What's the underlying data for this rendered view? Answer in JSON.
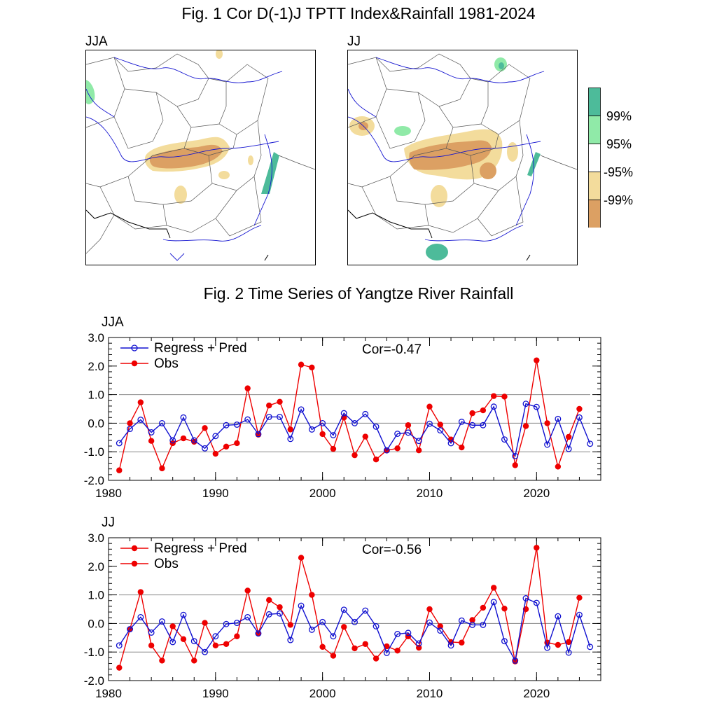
{
  "fig1": {
    "title": "Fig. 1 Cor D(-1)J TPTT Index&Rainfall 1981-2024",
    "maps": [
      {
        "label": "JJA"
      },
      {
        "label": "JJ"
      }
    ],
    "colorbar": {
      "labels": [
        "99%",
        "95%",
        "-95%",
        "-99%"
      ],
      "colors": [
        "#4dbb9a",
        "#90eaa8",
        "#ffffff",
        "#f3dc9c",
        "#dca063"
      ]
    }
  },
  "fig2": {
    "title": "Fig. 2 Time Series of Yangtze River Rainfall",
    "colors": {
      "blue": "#1010d0",
      "red": "#ee0000"
    }
  },
  "chart_data": [
    {
      "type": "line",
      "label": "JJA",
      "correlation": "Cor=-0.47",
      "x": [
        1981,
        1982,
        1983,
        1984,
        1985,
        1986,
        1987,
        1988,
        1989,
        1990,
        1991,
        1992,
        1993,
        1994,
        1995,
        1996,
        1997,
        1998,
        1999,
        2000,
        2001,
        2002,
        2003,
        2004,
        2005,
        2006,
        2007,
        2008,
        2009,
        2010,
        2011,
        2012,
        2013,
        2014,
        2015,
        2016,
        2017,
        2018,
        2019,
        2020,
        2021,
        2022,
        2023,
        2024,
        2025
      ],
      "xticks": [
        1980,
        1990,
        2000,
        2010,
        2020
      ],
      "yticks": [
        "-2.0",
        "-1.0",
        "0.0",
        "1.0",
        "2.0",
        "3.0"
      ],
      "ylim": [
        -2,
        3
      ],
      "xlim": [
        1980,
        2026
      ],
      "series": [
        {
          "name": "Regress + Pred",
          "color": "#1010d0",
          "marker": "open",
          "values": [
            -0.7,
            -0.2,
            0.12,
            -0.32,
            0.0,
            -0.6,
            0.2,
            -0.6,
            -0.88,
            -0.45,
            -0.07,
            -0.05,
            0.13,
            -0.38,
            0.22,
            0.22,
            -0.55,
            0.48,
            -0.22,
            0.0,
            -0.42,
            0.35,
            0.0,
            0.32,
            -0.12,
            -0.95,
            -0.37,
            -0.33,
            -0.62,
            -0.02,
            -0.25,
            -0.7,
            0.05,
            -0.07,
            -0.07,
            0.58,
            -0.57,
            -1.15,
            0.68,
            0.57,
            -0.75,
            0.15,
            -0.9,
            0.2,
            -0.72
          ]
        },
        {
          "name": "Obs",
          "color": "#ee0000",
          "marker": "filled",
          "values": [
            -1.65,
            0.0,
            0.73,
            -0.62,
            -1.58,
            -0.7,
            -0.53,
            -0.65,
            -0.17,
            -1.07,
            -0.82,
            -0.7,
            1.22,
            -0.4,
            0.62,
            0.75,
            -0.22,
            2.05,
            1.95,
            -0.38,
            -0.9,
            0.2,
            -1.12,
            -0.47,
            -1.27,
            -0.95,
            -0.88,
            -0.07,
            -0.95,
            0.58,
            -0.05,
            -0.57,
            -0.85,
            0.35,
            0.45,
            0.95,
            0.93,
            -1.47,
            -0.1,
            2.2,
            0.0,
            -1.52,
            -0.48,
            0.5,
            null
          ]
        }
      ]
    },
    {
      "type": "line",
      "label": "JJ",
      "correlation": "Cor=-0.56",
      "x": [
        1981,
        1982,
        1983,
        1984,
        1985,
        1986,
        1987,
        1988,
        1989,
        1990,
        1991,
        1992,
        1993,
        1994,
        1995,
        1996,
        1997,
        1998,
        1999,
        2000,
        2001,
        2002,
        2003,
        2004,
        2005,
        2006,
        2007,
        2008,
        2009,
        2010,
        2011,
        2012,
        2013,
        2014,
        2015,
        2016,
        2017,
        2018,
        2019,
        2020,
        2021,
        2022,
        2023,
        2024,
        2025
      ],
      "xticks": [
        1980,
        1990,
        2000,
        2010,
        2020
      ],
      "yticks": [
        "-2.0",
        "-1.0",
        "0.0",
        "1.0",
        "2.0",
        "3.0"
      ],
      "ylim": [
        -2,
        3
      ],
      "xlim": [
        1980,
        2026
      ],
      "series": [
        {
          "name": "Regress + Pred",
          "color": "#1010d0",
          "legend_color": "#ee0000",
          "marker": "open",
          "values": [
            -0.77,
            -0.2,
            0.22,
            -0.32,
            0.07,
            -0.65,
            0.3,
            -0.62,
            -1.0,
            -0.45,
            -0.02,
            0.02,
            0.22,
            -0.35,
            0.32,
            0.35,
            -0.58,
            0.62,
            -0.22,
            0.05,
            -0.45,
            0.48,
            0.05,
            0.45,
            -0.1,
            -1.03,
            -0.37,
            -0.33,
            -0.7,
            0.03,
            -0.25,
            -0.77,
            0.1,
            -0.05,
            -0.05,
            0.75,
            -0.62,
            -1.3,
            0.88,
            0.72,
            -0.85,
            0.25,
            -1.02,
            0.3,
            -0.82
          ]
        },
        {
          "name": "Obs",
          "color": "#ee0000",
          "marker": "filled",
          "values": [
            -1.55,
            -0.2,
            1.1,
            -0.77,
            -1.3,
            -0.1,
            -0.55,
            -1.3,
            0.02,
            -0.77,
            -0.72,
            -0.45,
            1.15,
            -0.35,
            0.82,
            0.57,
            -0.05,
            2.3,
            1.0,
            -0.82,
            -1.13,
            -0.12,
            -0.87,
            -0.72,
            -1.23,
            -0.8,
            -0.95,
            -0.45,
            -0.85,
            0.5,
            -0.1,
            -0.65,
            -0.67,
            0.12,
            0.55,
            1.25,
            0.52,
            -1.33,
            0.5,
            2.65,
            -0.67,
            -0.75,
            -0.65,
            0.9,
            null
          ]
        }
      ]
    }
  ]
}
